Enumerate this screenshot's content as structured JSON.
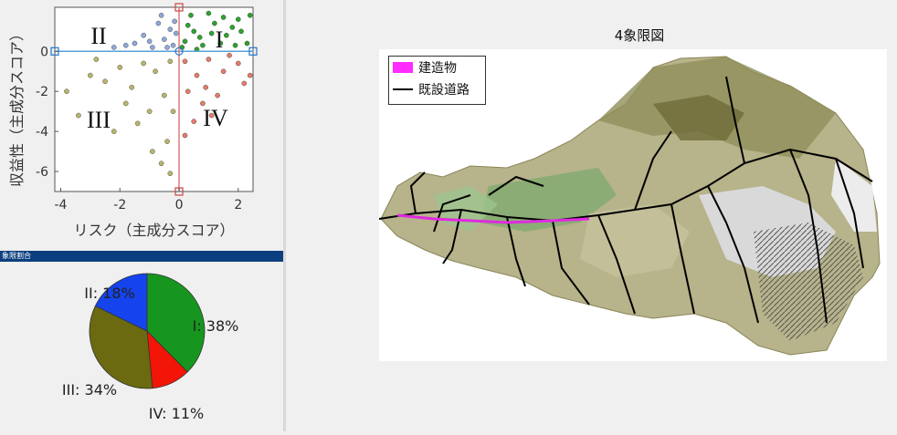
{
  "scatter": {
    "xlabel": "リスク（主成分スコア）",
    "ylabel": "収益性（主成分スコア）",
    "xticks": [
      "-4",
      "-2",
      "0",
      "2"
    ],
    "yticks": [
      "0",
      "-2",
      "-4",
      "-6"
    ],
    "quadrant_labels": [
      "I",
      "II",
      "III",
      "IV"
    ],
    "colors": {
      "I": "#2ea12e",
      "II": "#8fa8d8",
      "III": "#b8b56a",
      "IV": "#e47b6a"
    }
  },
  "pie": {
    "header": "象限割合",
    "labels": [
      "I: 38%",
      "II: 18%",
      "III: 34%",
      "IV: 11%"
    ],
    "colors": {
      "I": "#16961e",
      "II": "#1543ee",
      "III": "#6b6a10",
      "IV": "#f21508"
    }
  },
  "map": {
    "title": "4象限図",
    "legend_building": "建造物",
    "legend_road": "既設道路"
  },
  "chart_data": [
    {
      "type": "scatter",
      "title": "",
      "xlabel": "リスク（主成分スコア）",
      "ylabel": "収益性（主成分スコア）",
      "xlim": [
        -4.2,
        2.5
      ],
      "ylim": [
        -7.0,
        2.2
      ],
      "grid": false,
      "series": [
        {
          "name": "I",
          "points": [
            [
              0.2,
              0.5
            ],
            [
              0.5,
              1.0
            ],
            [
              0.8,
              0.3
            ],
            [
              1.2,
              1.4
            ],
            [
              1.6,
              0.8
            ],
            [
              2.0,
              1.6
            ],
            [
              2.3,
              0.4
            ],
            [
              0.4,
              1.8
            ],
            [
              1.0,
              1.9
            ],
            [
              1.8,
              1.2
            ],
            [
              0.1,
              0.2
            ],
            [
              0.7,
              0.7
            ],
            [
              1.4,
              0.4
            ],
            [
              2.1,
              1.0
            ],
            [
              0.3,
              1.3
            ],
            [
              1.1,
              0.9
            ],
            [
              1.9,
              0.3
            ],
            [
              2.4,
              1.8
            ],
            [
              0.6,
              0.1
            ],
            [
              1.5,
              1.7
            ]
          ]
        },
        {
          "name": "II",
          "points": [
            [
              -0.2,
              0.3
            ],
            [
              -0.5,
              0.6
            ],
            [
              -0.9,
              0.2
            ],
            [
              -1.2,
              0.8
            ],
            [
              -0.3,
              1.1
            ],
            [
              -0.7,
              1.4
            ],
            [
              -1.5,
              0.4
            ],
            [
              -0.1,
              0.9
            ],
            [
              -1.0,
              0.5
            ],
            [
              -0.4,
              0.2
            ],
            [
              -1.8,
              0.3
            ],
            [
              -0.6,
              1.8
            ],
            [
              -2.2,
              0.2
            ],
            [
              -0.15,
              1.5
            ]
          ]
        },
        {
          "name": "III",
          "points": [
            [
              -0.3,
              -0.5
            ],
            [
              -0.8,
              -1.0
            ],
            [
              -1.2,
              -0.6
            ],
            [
              -1.6,
              -1.8
            ],
            [
              -0.5,
              -2.2
            ],
            [
              -1.0,
              -3.0
            ],
            [
              -2.0,
              -0.8
            ],
            [
              -2.5,
              -1.5
            ],
            [
              -3.0,
              -1.2
            ],
            [
              -3.8,
              -2.0
            ],
            [
              -0.4,
              -4.5
            ],
            [
              -0.9,
              -5.0
            ],
            [
              -1.4,
              -3.6
            ],
            [
              -0.2,
              -3.0
            ],
            [
              -2.8,
              -0.4
            ],
            [
              -0.6,
              -5.6
            ],
            [
              -1.8,
              -2.6
            ],
            [
              -0.3,
              -6.1
            ],
            [
              -3.4,
              -3.2
            ],
            [
              -2.2,
              -4.0
            ]
          ]
        },
        {
          "name": "IV",
          "points": [
            [
              0.2,
              -0.5
            ],
            [
              0.6,
              -1.2
            ],
            [
              1.0,
              -0.4
            ],
            [
              1.5,
              -1.0
            ],
            [
              2.0,
              -0.6
            ],
            [
              0.3,
              -2.0
            ],
            [
              0.8,
              -2.6
            ],
            [
              1.3,
              -2.2
            ],
            [
              2.2,
              -1.6
            ],
            [
              0.5,
              -3.5
            ],
            [
              1.1,
              -3.2
            ],
            [
              0.2,
              -4.2
            ],
            [
              1.7,
              -0.2
            ],
            [
              2.4,
              -1.2
            ],
            [
              0.9,
              -1.8
            ]
          ]
        }
      ]
    },
    {
      "type": "pie",
      "title": "象限割合",
      "categories": [
        "I",
        "II",
        "III",
        "IV"
      ],
      "values": [
        38,
        18,
        34,
        11
      ],
      "labels": [
        "I: 38%",
        "II: 18%",
        "III: 34%",
        "IV: 11%"
      ]
    }
  ]
}
